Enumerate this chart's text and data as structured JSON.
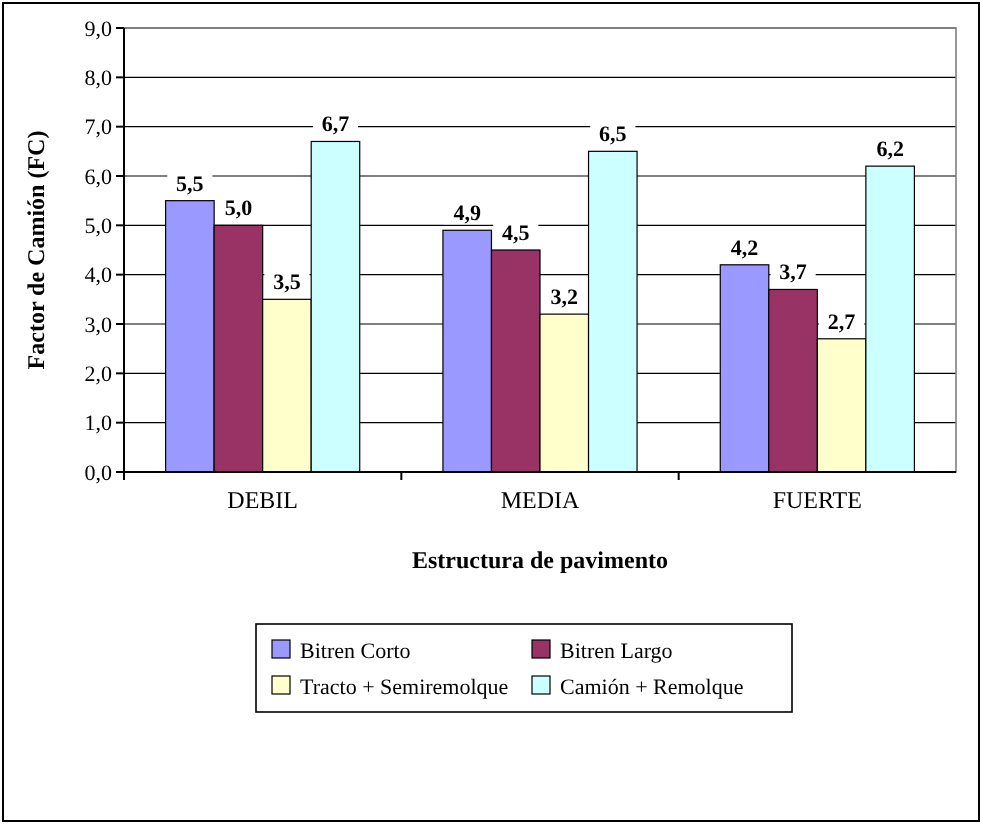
{
  "chart_data": {
    "type": "bar",
    "xlabel": "Estructura de pavimento",
    "ylabel": "Factor de Camión (FC)",
    "categories": [
      "DEBIL",
      "MEDIA",
      "FUERTE"
    ],
    "series": [
      {
        "name": "Bitren Corto",
        "color": "#9999ff",
        "values": [
          5.5,
          4.9,
          4.2
        ],
        "value_labels": [
          "5,5",
          "4,9",
          "4,2"
        ]
      },
      {
        "name": "Bitren Largo",
        "color": "#993366",
        "values": [
          5.0,
          4.5,
          3.7
        ],
        "value_labels": [
          "5,0",
          "4,5",
          "3,7"
        ]
      },
      {
        "name": "Tracto + Semiremolque",
        "color": "#ffffcc",
        "values": [
          3.5,
          3.2,
          2.7
        ],
        "value_labels": [
          "3,5",
          "3,2",
          "2,7"
        ]
      },
      {
        "name": "Camión + Remolque",
        "color": "#ccffff",
        "values": [
          6.7,
          6.5,
          6.2
        ],
        "value_labels": [
          "6,7",
          "6,5",
          "6,2"
        ]
      }
    ],
    "ylim": [
      0,
      9
    ],
    "yticks": [
      {
        "value": 0,
        "label": "0,0"
      },
      {
        "value": 1,
        "label": "1,0"
      },
      {
        "value": 2,
        "label": "2,0"
      },
      {
        "value": 3,
        "label": "3,0"
      },
      {
        "value": 4,
        "label": "4,0"
      },
      {
        "value": 5,
        "label": "5,0"
      },
      {
        "value": 6,
        "label": "6,0"
      },
      {
        "value": 7,
        "label": "7,0"
      },
      {
        "value": 8,
        "label": "8,0"
      },
      {
        "value": 9,
        "label": "9,0"
      }
    ],
    "grid": "y",
    "legend": "bottom"
  }
}
